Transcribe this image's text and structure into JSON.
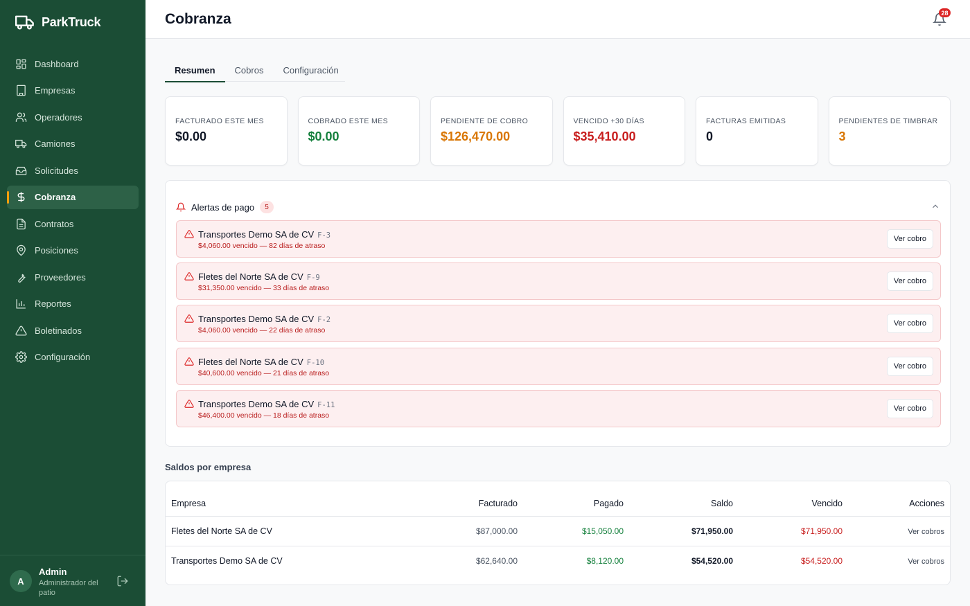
{
  "brand": {
    "name": "ParkTruck",
    "logo_icon": "truck-icon"
  },
  "sidebar": {
    "items": [
      {
        "label": "Dashboard",
        "icon": "dashboard-icon"
      },
      {
        "label": "Empresas",
        "icon": "building-icon"
      },
      {
        "label": "Operadores",
        "icon": "users-icon"
      },
      {
        "label": "Camiones",
        "icon": "truck-icon"
      },
      {
        "label": "Solicitudes",
        "icon": "inbox-icon"
      },
      {
        "label": "Cobranza",
        "icon": "dollar-icon",
        "active": true
      },
      {
        "label": "Contratos",
        "icon": "document-icon"
      },
      {
        "label": "Posiciones",
        "icon": "map-pin-icon"
      },
      {
        "label": "Proveedores",
        "icon": "wrench-icon"
      },
      {
        "label": "Reportes",
        "icon": "bar-chart-icon"
      },
      {
        "label": "Boletinados",
        "icon": "warning-icon"
      },
      {
        "label": "Configuración",
        "icon": "gear-icon"
      }
    ],
    "user": {
      "initial": "A",
      "name": "Admin",
      "role": "Administrador del patio"
    }
  },
  "header": {
    "title": "Cobranza",
    "notifications": "28"
  },
  "tabs": [
    {
      "label": "Resumen",
      "active": true
    },
    {
      "label": "Cobros"
    },
    {
      "label": "Configuración"
    }
  ],
  "kpis": [
    {
      "label": "Facturado este mes",
      "value": "$0.00",
      "color": "#111827"
    },
    {
      "label": "Cobrado este mes",
      "value": "$0.00",
      "color": "#15803d"
    },
    {
      "label": "Pendiente de cobro",
      "value": "$126,470.00",
      "color": "#d97706"
    },
    {
      "label": "Vencido +30 días",
      "value": "$35,410.00",
      "color": "#c81e1e"
    },
    {
      "label": "Facturas emitidas",
      "value": "0",
      "color": "#111827"
    },
    {
      "label": "Pendientes de timbrar",
      "value": "3",
      "color": "#d97706"
    }
  ],
  "alerts": {
    "title": "Alertas de pago",
    "count": "5",
    "button_label": "Ver cobro",
    "items": [
      {
        "company": "Transportes Demo SA de CV",
        "invoice": "F-3",
        "detail": "$4,060.00 vencido — 82 días de atraso"
      },
      {
        "company": "Fletes del Norte SA de CV",
        "invoice": "F-9",
        "detail": "$31,350.00 vencido — 33 días de atraso"
      },
      {
        "company": "Transportes Demo SA de CV",
        "invoice": "F-2",
        "detail": "$4,060.00 vencido — 22 días de atraso"
      },
      {
        "company": "Fletes del Norte SA de CV",
        "invoice": "F-10",
        "detail": "$40,600.00 vencido — 21 días de atraso"
      },
      {
        "company": "Transportes Demo SA de CV",
        "invoice": "F-11",
        "detail": "$46,400.00 vencido — 18 días de atraso"
      }
    ]
  },
  "balances": {
    "title": "Saldos por empresa",
    "columns": [
      "Empresa",
      "Facturado",
      "Pagado",
      "Saldo",
      "Vencido",
      "Acciones"
    ],
    "action_label": "Ver cobros",
    "rows": [
      {
        "company": "Fletes del Norte SA de CV",
        "billed": "$87,000.00",
        "paid": "$15,050.00",
        "balance": "$71,950.00",
        "due": "$71,950.00"
      },
      {
        "company": "Transportes Demo SA de CV",
        "billed": "$62,640.00",
        "paid": "$8,120.00",
        "balance": "$54,520.00",
        "due": "$54,520.00"
      }
    ]
  }
}
